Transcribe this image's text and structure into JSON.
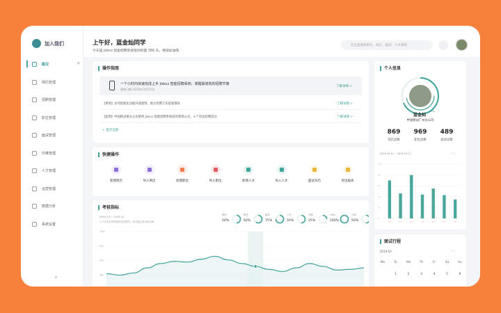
{
  "sidebar": {
    "brand": "加入我们",
    "items": [
      "概况",
      "简历管理",
      "招聘管理",
      "职位管理",
      "面试管理",
      "内推管理",
      "人才管理",
      "运营管理",
      "数据分析",
      "系统设置"
    ]
  },
  "header": {
    "greeting": "上午好，蓝金灿同学",
    "subtitle": "今天是 Jobus 智能招聘系统帮你的第 366 天，继续加油哦",
    "search": "在这里搜索职位、简历、面试、人才库等"
  },
  "guide": {
    "title": "操作指南",
    "highlight": {
      "text": "一个小时内快速完成上手 Jobus 智能招聘系统，掌握最高效的招聘节奏",
      "date": "更新日期 2020年10月10日",
      "link": "了解详情 >"
    },
    "items": [
      {
        "text": "【更新】多项智能化功能开放使用，助力招聘工作提速增效",
        "link": "了解详情 >"
      },
      {
        "text": "【案例】中国移动某分公司使用 Jobus 智能招聘系统高效管理公司，十个岗位招聘成功",
        "link": "了解详情 >"
      }
    ],
    "more": "+ 显示全部"
  },
  "quick": {
    "title": "快捷操作",
    "items": [
      "新建简历",
      "导入简历",
      "新建职位",
      "导入职位",
      "新增人才",
      "导入人才",
      "面试日历",
      "导出报表"
    ]
  },
  "metrics": {
    "title": "考核指标",
    "date": "2019-10 ~ 2019-10",
    "note": "以下为本月考核指标完成情况，统计截止到当前日期",
    "rings": [
      {
        "label": "简历",
        "value": 50,
        "value_label": "50%"
      },
      {
        "label": "职位",
        "value": 60,
        "value_label": "60%"
      },
      {
        "label": "面试",
        "value": 75,
        "value_label": "75%"
      },
      {
        "label": "人才",
        "value": 50,
        "value_label": "50%"
      },
      {
        "label": "内推",
        "value": 25,
        "value_label": "25%"
      },
      {
        "label": "Offer",
        "value": 100,
        "value_label": "100%"
      },
      {
        "label": "入职",
        "value": 50,
        "value_label": "50%"
      }
    ],
    "chart": {
      "ylim": [
        300,
        1000
      ],
      "yticks": [
        400,
        600,
        800,
        1000
      ],
      "values": [
        420,
        400,
        430,
        500,
        560,
        590,
        580,
        620,
        660,
        610,
        560,
        520,
        480,
        450,
        500,
        560,
        520,
        470,
        480,
        500
      ]
    }
  },
  "profile": {
    "title": "个人信息",
    "name": "蓝金灿",
    "badge": "70%",
    "company": "中国移动广州分公司",
    "stats": [
      {
        "value": 869,
        "label": "简历总数"
      },
      {
        "value": 969,
        "label": "职位总数"
      },
      {
        "value": 489,
        "label": "面试总数"
      }
    ],
    "chart": {
      "date": "2019-10-10 ~ 2019-10-17",
      "ylim": [
        0,
        100
      ],
      "yticks": [
        0,
        20,
        40,
        60,
        80,
        100
      ],
      "categories": [
        "10",
        "11",
        "12",
        "13",
        "14",
        "15",
        "16"
      ],
      "values": [
        70,
        46,
        80,
        44,
        55,
        43,
        35
      ]
    }
  },
  "calendar": {
    "title": "面试行程",
    "month": "2019-10",
    "weekdays": [
      "Mo",
      "Tu",
      "We",
      "Th",
      "Fr",
      "Sa",
      "Su"
    ],
    "days": [
      1,
      2,
      3,
      4,
      5,
      6
    ]
  }
}
